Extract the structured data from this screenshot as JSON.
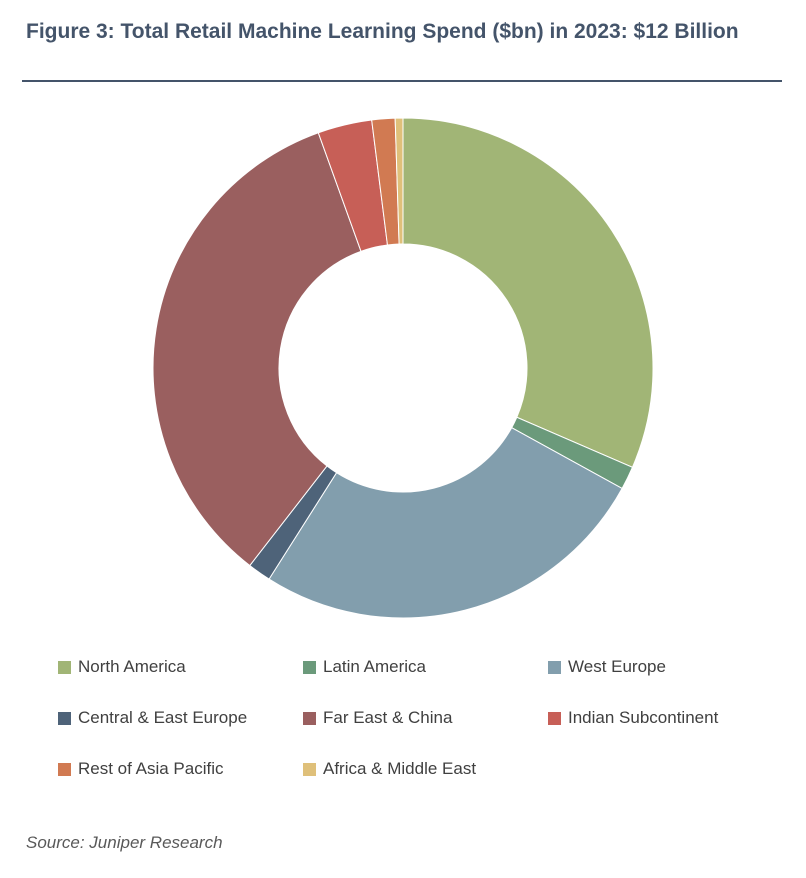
{
  "title": "Figure 3: Total Retail Machine Learning Spend ($bn) in 2023: $12 Billion",
  "source": "Source: Juniper Research",
  "chart_data": {
    "type": "pie",
    "donut": true,
    "title": "Figure 3: Total Retail Machine Learning Spend ($bn) in 2023: $12 Billion",
    "categories": [
      "North America",
      "Latin America",
      "West Europe",
      "Central & East Europe",
      "Far East & China",
      "Indian Subcontinent",
      "Rest of Asia Pacific",
      "Africa & Middle East"
    ],
    "values": [
      31.5,
      1.5,
      26.0,
      1.5,
      34.0,
      3.5,
      1.5,
      0.5
    ],
    "colors": [
      "#a1b576",
      "#6b9a7b",
      "#829ead",
      "#4e6379",
      "#9a5f5f",
      "#c75f57",
      "#d17a52",
      "#dfc07a"
    ],
    "legend_position": "bottom"
  }
}
